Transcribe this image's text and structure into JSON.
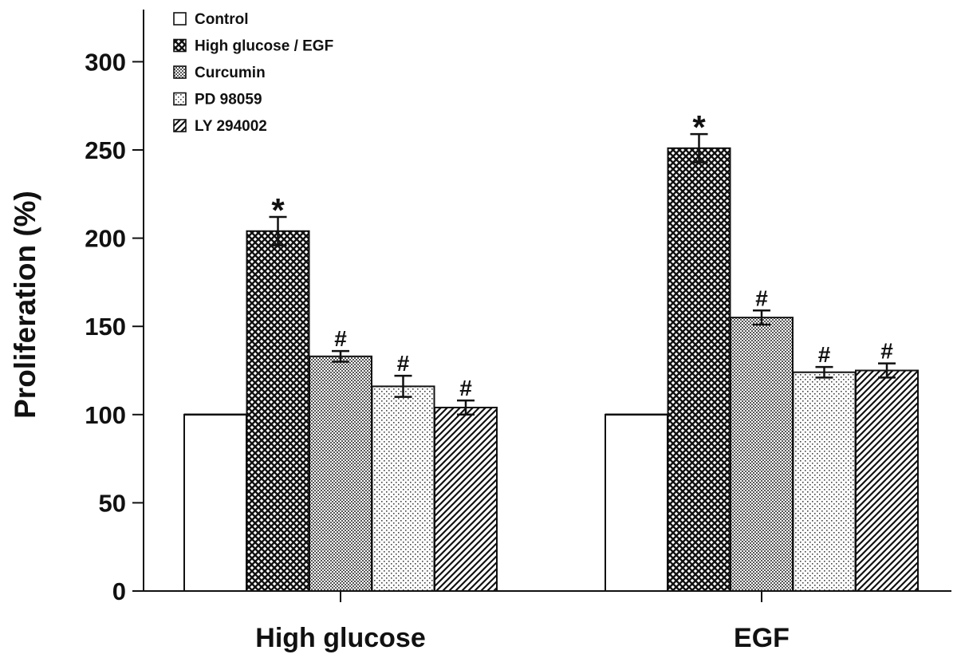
{
  "chart_data": {
    "type": "bar",
    "title": "",
    "xlabel": "",
    "ylabel": "Proliferation (%)",
    "ylim": [
      0,
      325
    ],
    "yticks": [
      0,
      50,
      100,
      150,
      200,
      250,
      300
    ],
    "categories": [
      "High glucose",
      "EGF"
    ],
    "legend_position": "top-left",
    "series": [
      {
        "name": "Control",
        "pattern": "none",
        "values": [
          100,
          100
        ],
        "errors": [
          0,
          0
        ],
        "annotations": [
          "",
          ""
        ]
      },
      {
        "name": "High glucose / EGF",
        "pattern": "crosshatch",
        "values": [
          204,
          251
        ],
        "errors": [
          8,
          8
        ],
        "annotations": [
          "*",
          "*"
        ]
      },
      {
        "name": "Curcumin",
        "pattern": "dense-dots",
        "values": [
          133,
          155
        ],
        "errors": [
          3,
          4
        ],
        "annotations": [
          "#",
          "#"
        ]
      },
      {
        "name": "PD 98059",
        "pattern": "sparse-dots",
        "values": [
          116,
          124
        ],
        "errors": [
          6,
          3
        ],
        "annotations": [
          "#",
          "#"
        ]
      },
      {
        "name": "LY 294002",
        "pattern": "diagonal-lines",
        "values": [
          104,
          125
        ],
        "errors": [
          4,
          4
        ],
        "annotations": [
          "#",
          "#"
        ]
      }
    ]
  }
}
